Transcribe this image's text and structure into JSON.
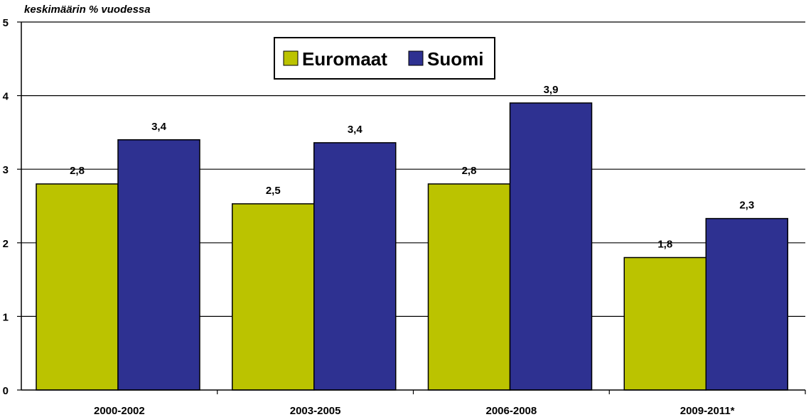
{
  "chart_data": {
    "type": "bar",
    "ylabel": "keskimäärin % vuodessa",
    "categories": [
      "2000-2002",
      "2003-2005",
      "2006-2008",
      "2009-2011*"
    ],
    "series": [
      {
        "name": "Euromaat",
        "color": "#BBC300",
        "values": [
          2.8,
          2.53,
          2.8,
          1.8
        ],
        "labels": [
          "2,8",
          "2,5",
          "2,8",
          "1,8"
        ]
      },
      {
        "name": "Suomi",
        "color": "#2E3191",
        "values": [
          3.4,
          3.36,
          3.9,
          2.33
        ],
        "labels": [
          "3,4",
          "3,4",
          "3,9",
          "2,3"
        ]
      }
    ],
    "ylim": [
      0,
      5
    ],
    "yticks": [
      "0",
      "1",
      "2",
      "3",
      "4",
      "5"
    ],
    "grid": true,
    "legend_position": "top-center"
  }
}
